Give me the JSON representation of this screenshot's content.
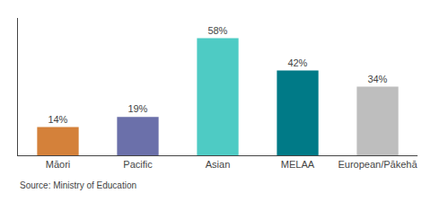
{
  "chart_data": {
    "type": "bar",
    "categories": [
      "Māori",
      "Pacific",
      "Asian",
      "MELAA",
      "European/Pākehā"
    ],
    "values": [
      14,
      19,
      58,
      42,
      34
    ],
    "value_labels": [
      "14%",
      "19%",
      "58%",
      "42%",
      "34%"
    ],
    "colors": [
      "#d4813a",
      "#6b70aa",
      "#4ecbc4",
      "#007a87",
      "#bebebe"
    ],
    "ylim": [
      0,
      68
    ],
    "grid": false,
    "data_labels": true,
    "tick_labels": "x",
    "annotations": [
      "Source: Ministry of Education"
    ]
  }
}
